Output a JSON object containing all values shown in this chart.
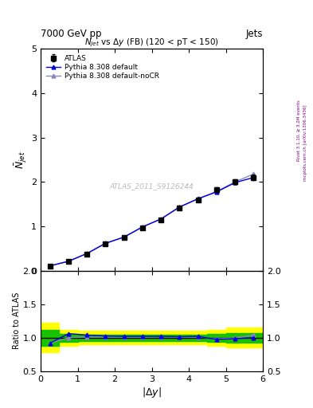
{
  "title_top": "7000 GeV pp",
  "title_top_right": "Jets",
  "plot_title": "$N_{jet}$ vs $\\Delta y$ (FB) (120 < pT < 150)",
  "watermark": "ATLAS_2011_S9126244",
  "right_label_top": "Rivet 3.1.10, ≥ 3.2M events",
  "right_label_bot": "mcplots.cern.ch [arXiv:1306.3436]",
  "xlabel": "$|\\Delta y|$",
  "ylabel_main": "$\\bar{N}_{jet}$",
  "ylabel_ratio": "Ratio to ATLAS",
  "xlim": [
    0,
    6
  ],
  "ylim_main": [
    0,
    5
  ],
  "ylim_ratio": [
    0.5,
    2.0
  ],
  "x_data": [
    0.25,
    0.75,
    1.25,
    1.75,
    2.25,
    2.75,
    3.25,
    3.75,
    4.25,
    4.75,
    5.25,
    5.75
  ],
  "atlas_y": [
    0.1,
    0.2,
    0.37,
    0.6,
    0.74,
    0.97,
    1.15,
    1.42,
    1.6,
    1.83,
    2.01,
    2.1
  ],
  "atlas_yerr": [
    0.005,
    0.01,
    0.015,
    0.02,
    0.025,
    0.03,
    0.035,
    0.04,
    0.045,
    0.05,
    0.055,
    0.06
  ],
  "pythia_default_y": [
    0.105,
    0.21,
    0.385,
    0.615,
    0.755,
    0.985,
    1.165,
    1.435,
    1.62,
    1.775,
    1.985,
    2.1
  ],
  "pythia_nocr_y": [
    0.105,
    0.21,
    0.385,
    0.615,
    0.755,
    0.985,
    1.165,
    1.435,
    1.62,
    1.785,
    2.0,
    2.18
  ],
  "ratio_default_y": [
    0.92,
    1.06,
    1.04,
    1.025,
    1.02,
    1.02,
    1.02,
    1.015,
    1.02,
    0.975,
    0.985,
    1.0
  ],
  "ratio_nocr_y": [
    0.92,
    1.0,
    1.01,
    1.01,
    1.01,
    1.01,
    1.015,
    1.01,
    1.01,
    0.985,
    0.995,
    1.04
  ],
  "band_yellow_low": [
    0.78,
    0.88,
    0.9,
    0.9,
    0.9,
    0.9,
    0.9,
    0.9,
    0.9,
    0.88,
    0.85,
    0.85
  ],
  "band_yellow_high": [
    1.22,
    1.12,
    1.1,
    1.1,
    1.1,
    1.1,
    1.1,
    1.1,
    1.1,
    1.12,
    1.15,
    1.15
  ],
  "band_green_low": [
    0.88,
    0.94,
    0.95,
    0.95,
    0.95,
    0.95,
    0.95,
    0.95,
    0.95,
    0.94,
    0.93,
    0.93
  ],
  "band_green_high": [
    1.12,
    1.06,
    1.05,
    1.05,
    1.05,
    1.05,
    1.05,
    1.05,
    1.05,
    1.06,
    1.07,
    1.07
  ],
  "color_atlas": "#000000",
  "color_pythia_default": "#0000dd",
  "color_pythia_nocr": "#8888bb",
  "color_yellow": "#ffff00",
  "color_green": "#00bb00",
  "legend_labels": [
    "ATLAS",
    "Pythia 8.308 default",
    "Pythia 8.308 default-noCR"
  ]
}
